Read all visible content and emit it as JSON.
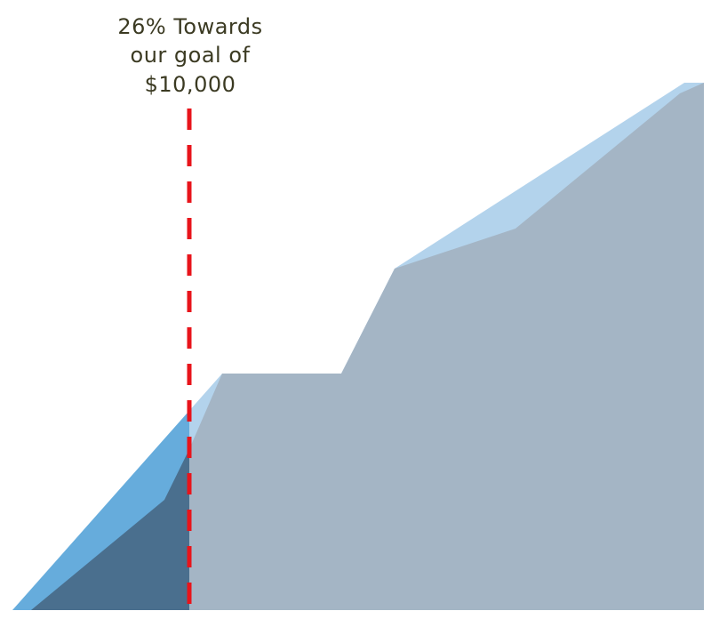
{
  "annotation": {
    "lines": [
      "26% Towards",
      "our goal of",
      "$10,000"
    ]
  }
}
